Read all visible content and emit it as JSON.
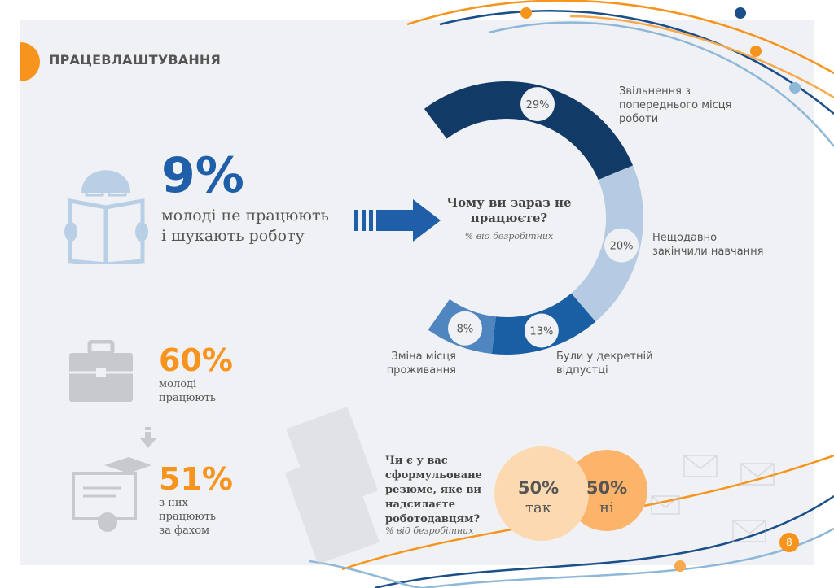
{
  "header": {
    "title": "ПРАЦЕВЛАШТУВАННЯ"
  },
  "stat_unemployed": {
    "value": "9%",
    "line1": "молоді не працюють",
    "line2": "і шукають роботу"
  },
  "stat_employed": {
    "value": "60%",
    "line1": "молоді",
    "line2": "працюють"
  },
  "stat_specialty": {
    "value": "51%",
    "line1": "з них",
    "line2": "працюють",
    "line3": "за фахом"
  },
  "chart_data": {
    "type": "pie",
    "title": "Чому ви зараз не працюєте?",
    "subtitle": "% від безробітних",
    "categories": [
      "Звільнення з попереднього місця роботи",
      "Нещодавно закінчили навчання",
      "Були у декретній відпустці",
      "Зміна місця проживання"
    ],
    "values": [
      29,
      20,
      13,
      8
    ],
    "value_labels": [
      "29%",
      "20%",
      "13%",
      "8%"
    ],
    "label_lines": [
      [
        "Звільнення з",
        "попереднього місця",
        "роботи"
      ],
      [
        "Нещодавно",
        "закінчили навчання"
      ],
      [
        "Були у декретній",
        "відпустці"
      ],
      [
        "Зміна місця",
        "проживання"
      ]
    ],
    "colors": [
      "#123a66",
      "#b5cbe3",
      "#1a5ea3",
      "#4f86c0"
    ]
  },
  "resume_question": {
    "lines": [
      "Чи є у вас",
      "сформульоване",
      "резюме, яке ви",
      "надсилаєте",
      "роботодавцям?"
    ],
    "note": "% від безробітних",
    "yes": {
      "value": "50%",
      "label": "так",
      "color": "#fcd9b0"
    },
    "no": {
      "value": "50%",
      "label": "ні",
      "color": "#fbb46a"
    }
  },
  "page_number": "8",
  "colors": {
    "accent_orange": "#f7941d",
    "accent_blue": "#1f5ea8"
  }
}
